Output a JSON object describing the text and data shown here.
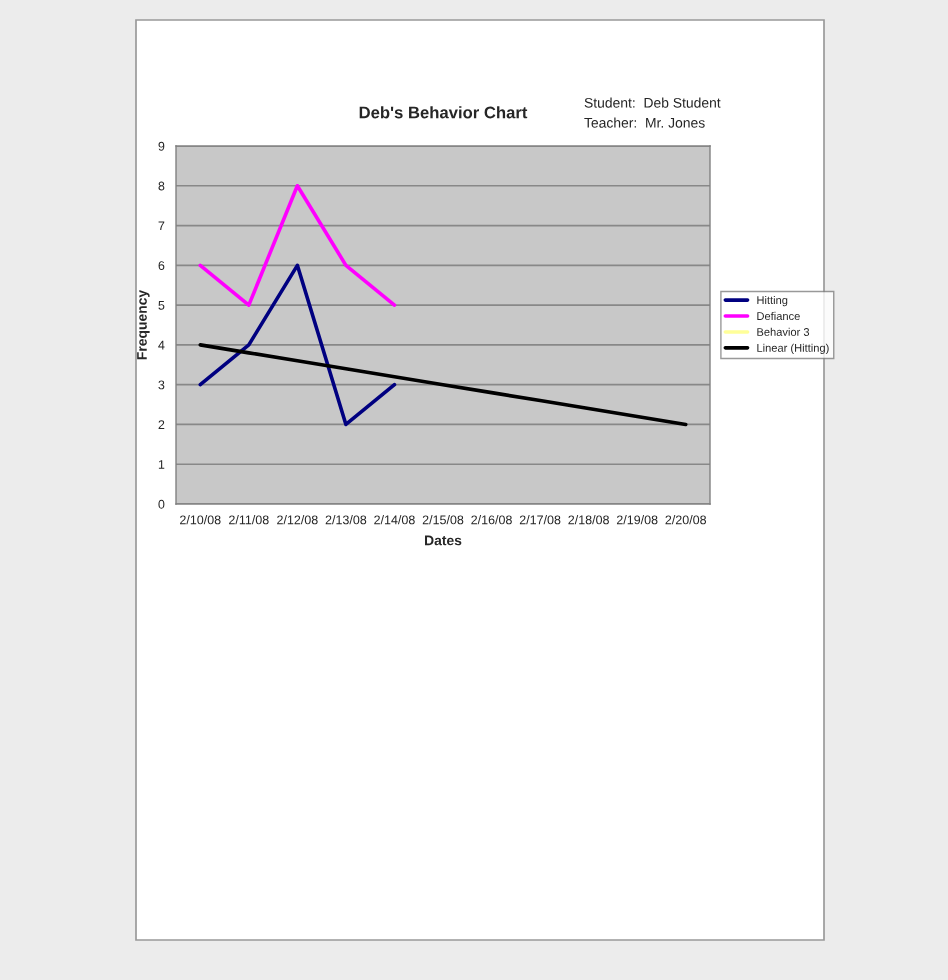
{
  "chart_data": {
    "type": "line",
    "title": "Deb's Behavior Chart",
    "xlabel": "Dates",
    "ylabel": "Frequency",
    "annotations": [
      "Student:  Deb Student",
      "Teacher:  Mr. Jones"
    ],
    "categories": [
      "2/10/08",
      "2/11/08",
      "2/12/08",
      "2/13/08",
      "2/14/08",
      "2/15/08",
      "2/16/08",
      "2/17/08",
      "2/18/08",
      "2/19/08",
      "2/20/08"
    ],
    "series": [
      {
        "name": "Hitting",
        "color": "#000080",
        "values": [
          3,
          4,
          6,
          2,
          3,
          null,
          null,
          null,
          null,
          null,
          null
        ]
      },
      {
        "name": "Defiance",
        "color": "#ff00ff",
        "values": [
          6,
          5,
          8,
          6,
          5,
          null,
          null,
          null,
          null,
          null,
          null
        ]
      },
      {
        "name": "Behavior 3",
        "color": "#ffff99",
        "values": [
          null,
          null,
          null,
          null,
          null,
          null,
          null,
          null,
          null,
          null,
          null
        ]
      },
      {
        "name": "Linear (Hitting)",
        "color": "#000000",
        "values": [
          4,
          3.8,
          3.6,
          3.4,
          3.2,
          3,
          2.8,
          2.6,
          2.4,
          2.2,
          2
        ]
      }
    ],
    "ylim": [
      0,
      9
    ],
    "yticks": [
      0,
      1,
      2,
      3,
      4,
      5,
      6,
      7,
      8,
      9
    ],
    "grid": "y",
    "legend": "right",
    "marker": "none",
    "line_style": "solid"
  }
}
